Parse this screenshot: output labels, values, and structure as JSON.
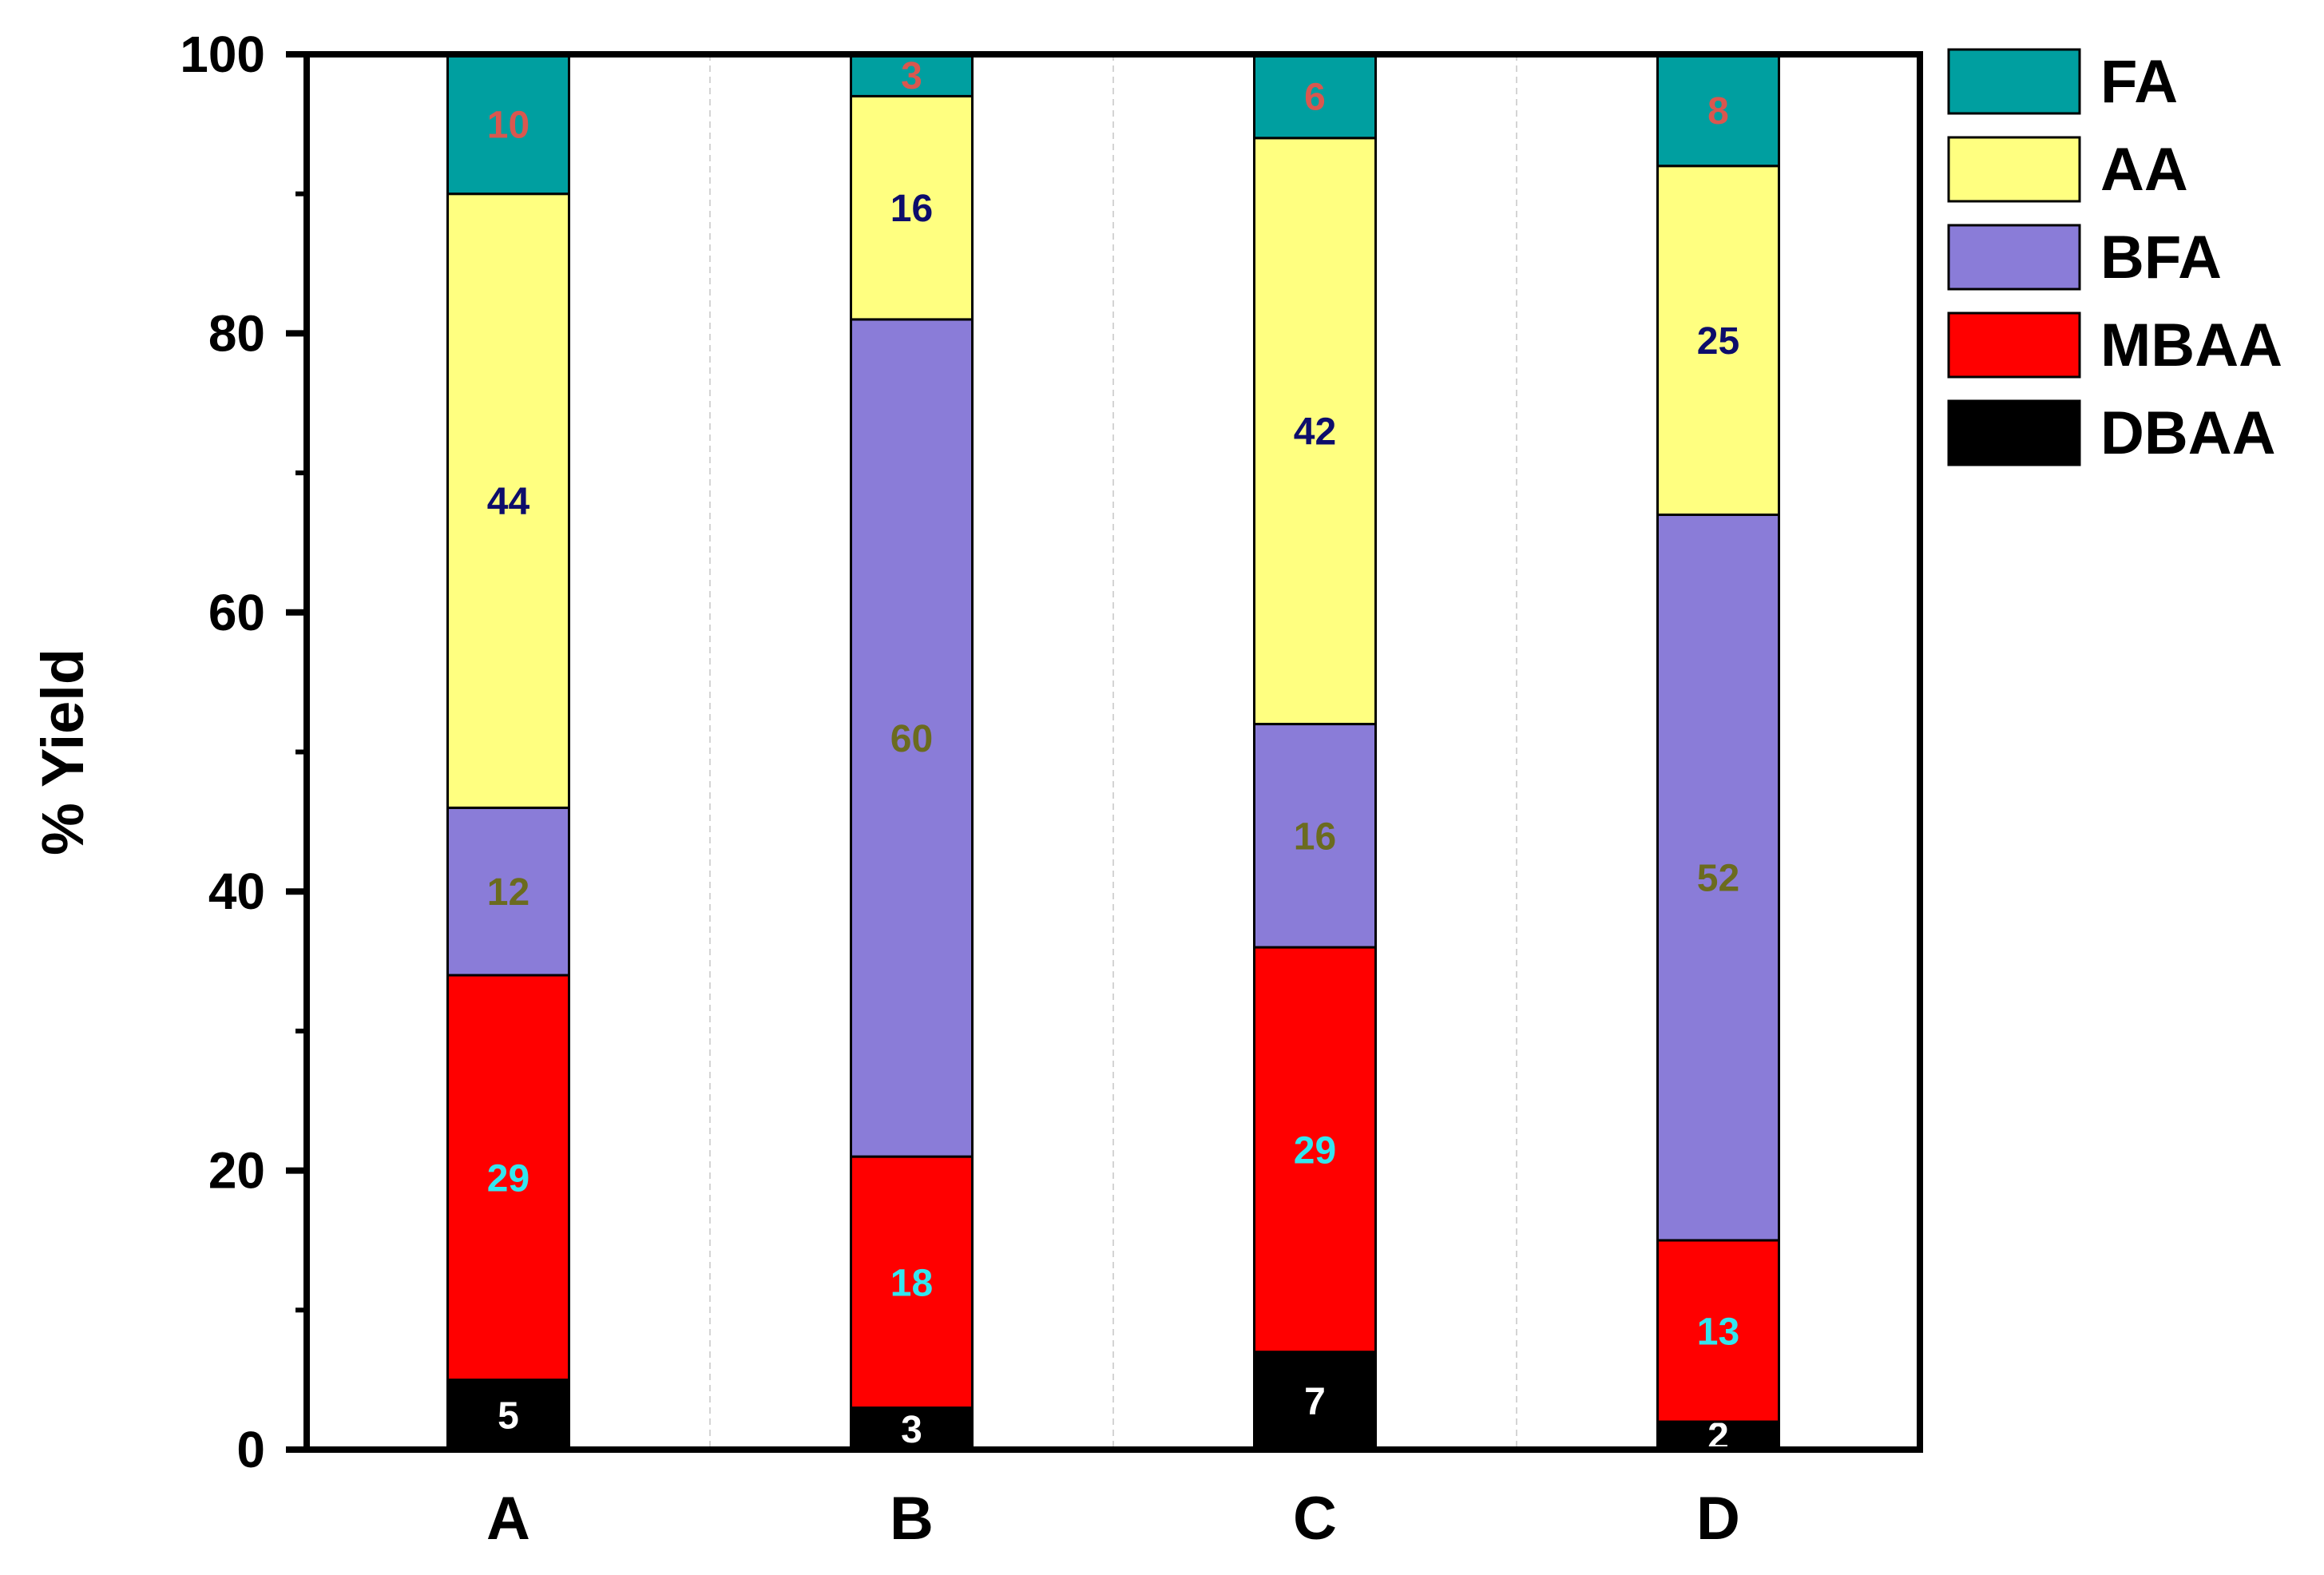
{
  "chart_data": {
    "type": "bar",
    "stacked": true,
    "title": "",
    "xlabel": "",
    "ylabel": "% Yield",
    "ylim": [
      0,
      100
    ],
    "yticks": [
      0,
      20,
      40,
      60,
      80,
      100
    ],
    "categories": [
      "A",
      "B",
      "C",
      "D"
    ],
    "legend_position": "right",
    "series": [
      {
        "name": "DBAA",
        "color": "#000000",
        "label_color": "#ffffff",
        "values": [
          5,
          3,
          7,
          2
        ]
      },
      {
        "name": "MBAA",
        "color": "#ff0000",
        "label_color": "#33e6ef",
        "values": [
          29,
          18,
          29,
          13
        ]
      },
      {
        "name": "BFA",
        "color": "#8a7cd8",
        "label_color": "#6b6b1f",
        "values": [
          12,
          60,
          16,
          52
        ]
      },
      {
        "name": "AA",
        "color": "#ffff80",
        "label_color": "#0d0d6b",
        "values": [
          44,
          16,
          42,
          25
        ]
      },
      {
        "name": "FA",
        "color": "#009fa0",
        "label_color": "#d9574f",
        "values": [
          10,
          3,
          6,
          8
        ]
      }
    ],
    "legend_order": [
      "FA",
      "AA",
      "BFA",
      "MBAA",
      "DBAA"
    ]
  }
}
